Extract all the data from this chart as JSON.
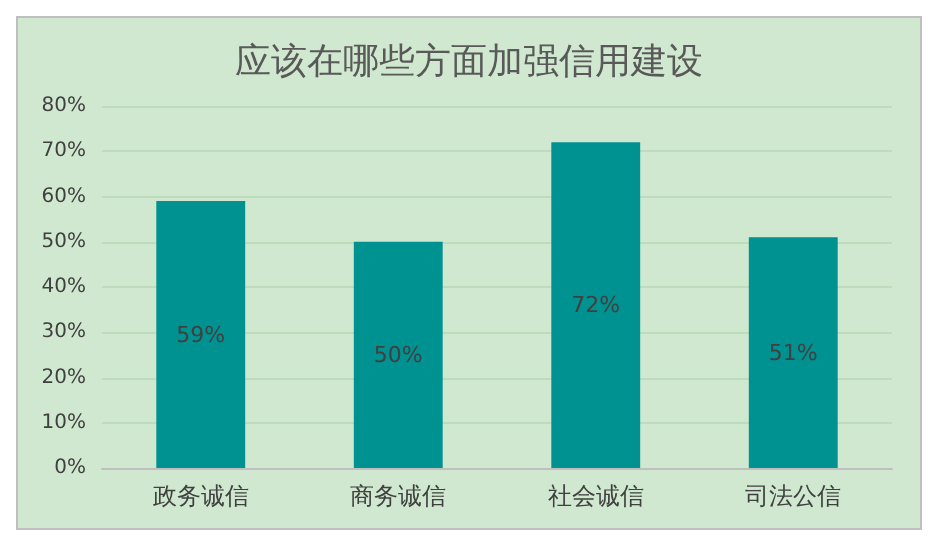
{
  "chart_data": {
    "type": "bar",
    "title": "应该在哪些方面加强信用建设",
    "categories": [
      "政务诚信",
      "商务诚信",
      "社会诚信",
      "司法公信"
    ],
    "values": [
      59,
      50,
      72,
      51
    ],
    "value_labels": [
      "59%",
      "50%",
      "72%",
      "51%"
    ],
    "color": "#009191",
    "ylim": [
      0,
      80
    ],
    "yticks": [
      {
        "value": 0,
        "label": "0%"
      },
      {
        "value": 10,
        "label": "10%"
      },
      {
        "value": 20,
        "label": "20%"
      },
      {
        "value": 30,
        "label": "30%"
      },
      {
        "value": 40,
        "label": "40%"
      },
      {
        "value": 50,
        "label": "50%"
      },
      {
        "value": 60,
        "label": "60%"
      },
      {
        "value": 70,
        "label": "70%"
      },
      {
        "value": 80,
        "label": "80%"
      }
    ],
    "grid": true
  }
}
